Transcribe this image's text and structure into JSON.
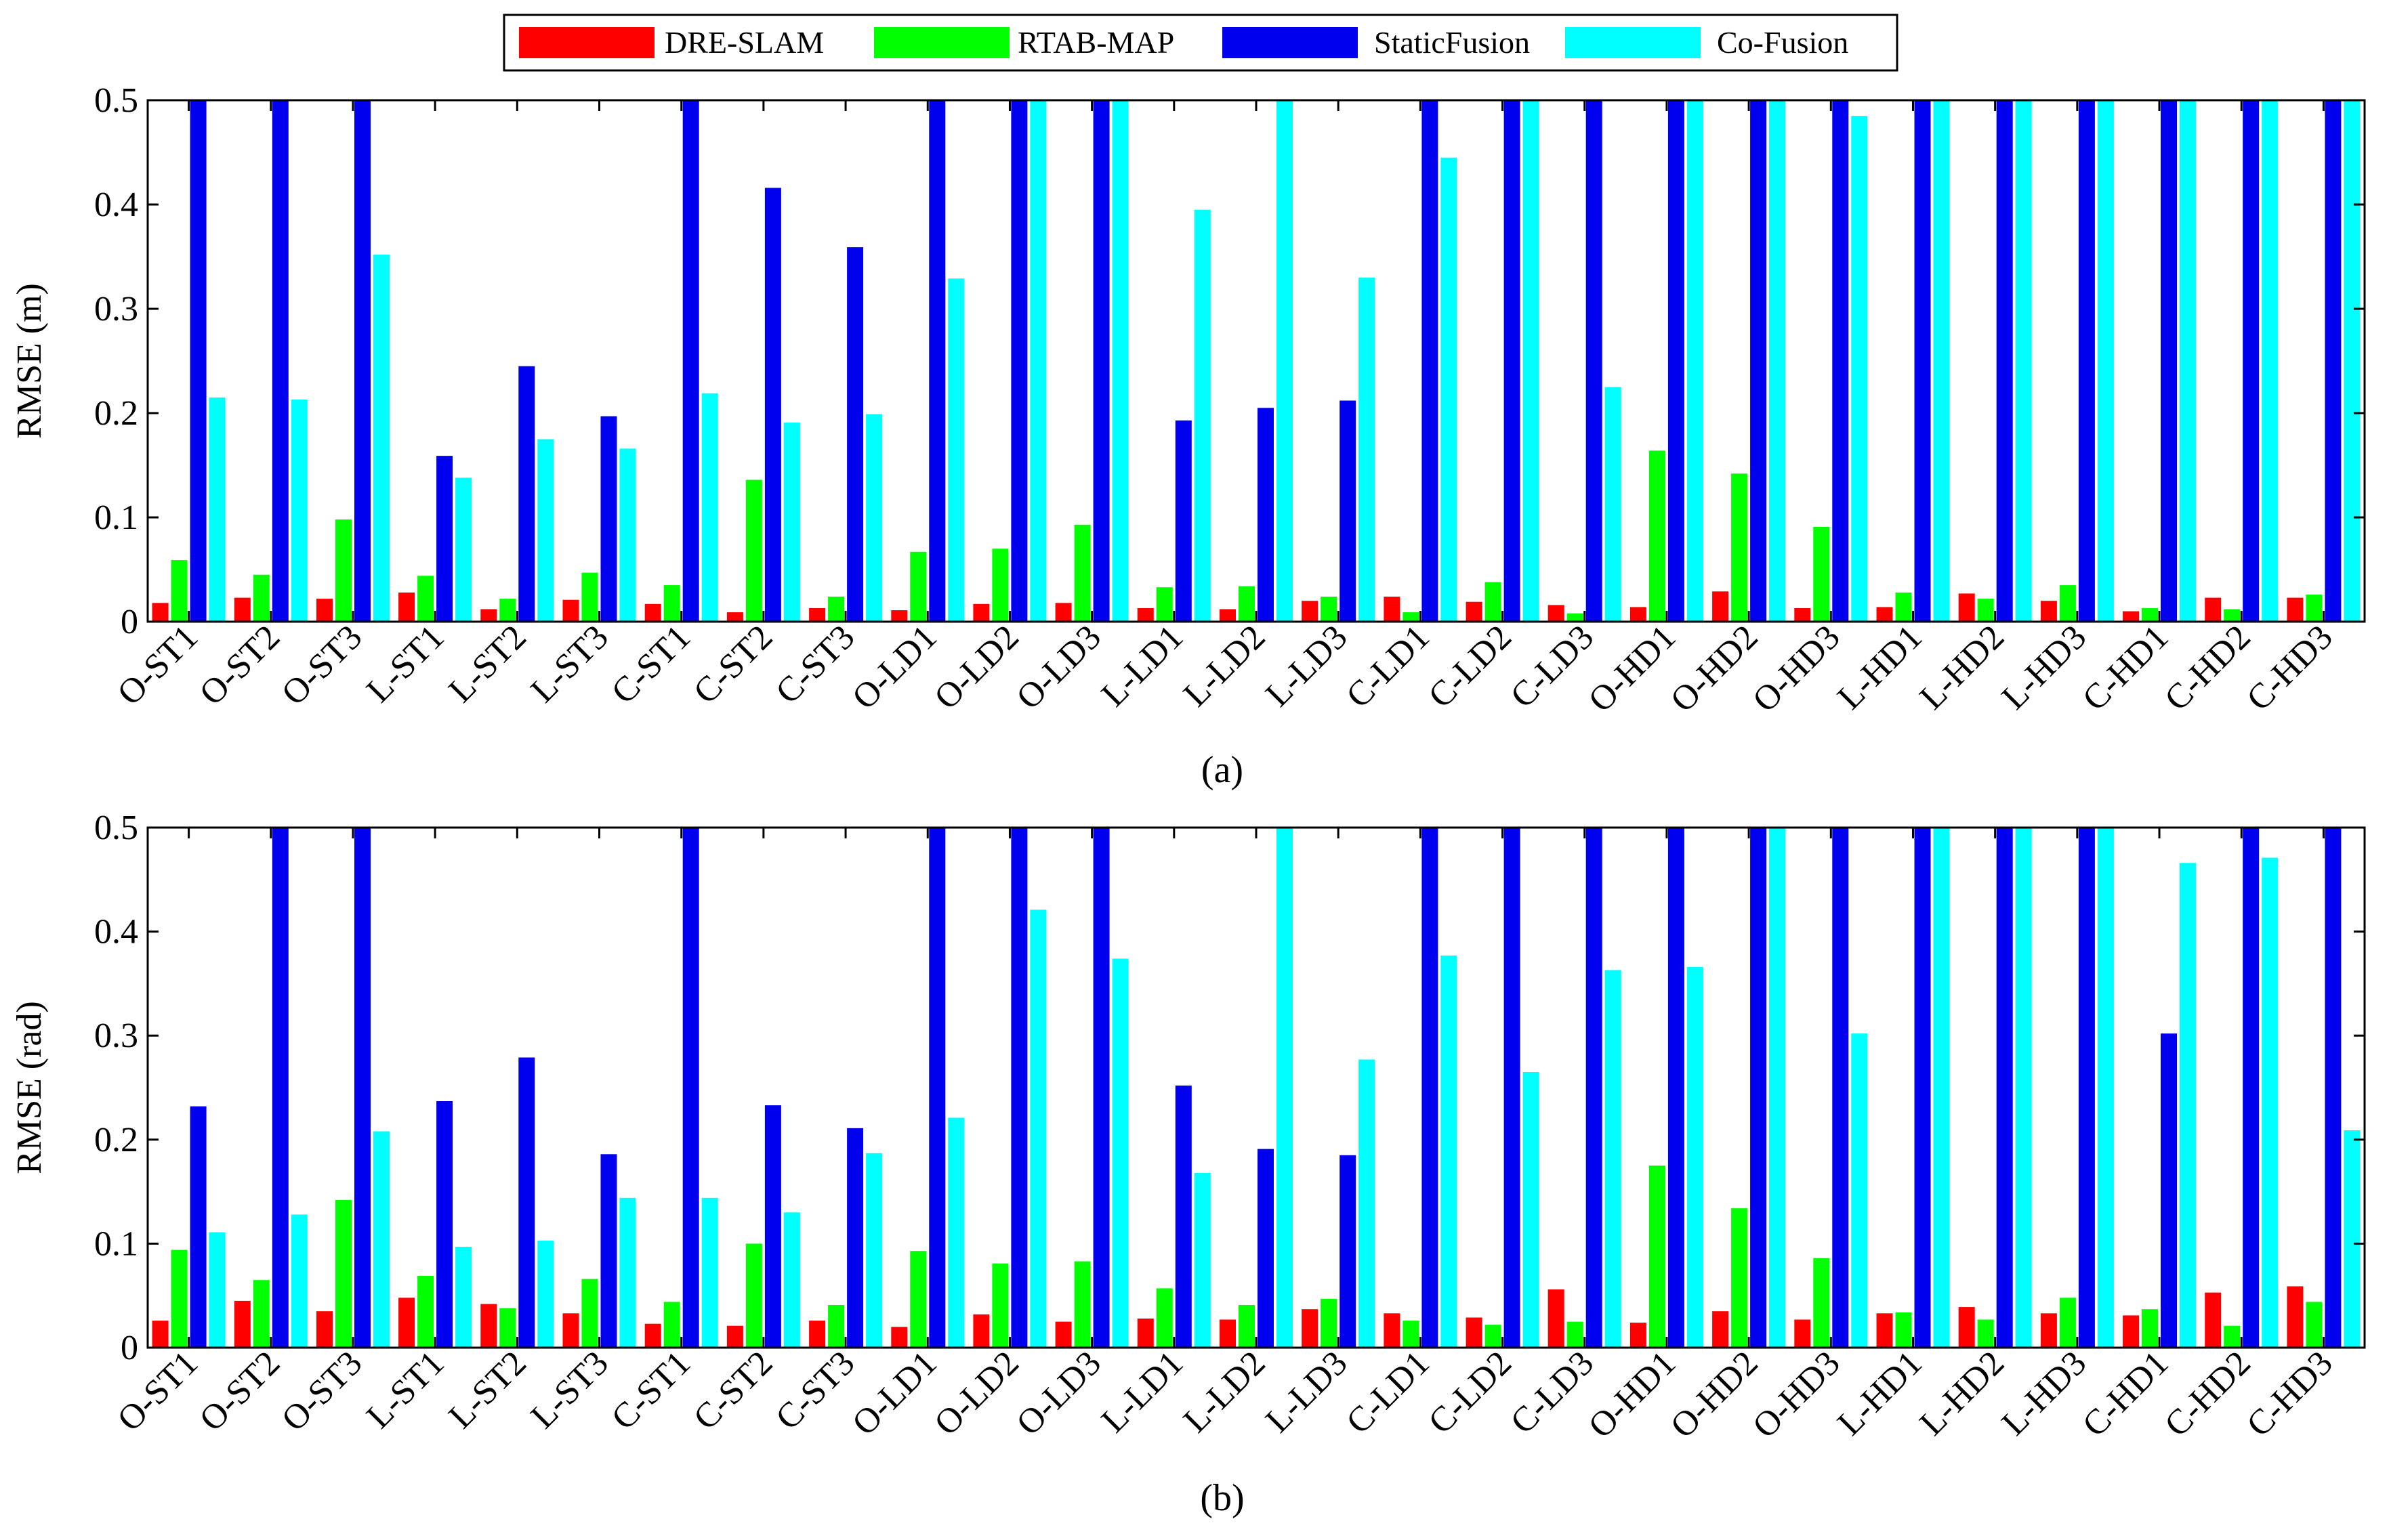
{
  "legend": {
    "entries": [
      "DRE-SLAM",
      "RTAB-MAP",
      "StaticFusion",
      "Co-Fusion"
    ],
    "colors": [
      "#ff0000",
      "#00ff00",
      "#0000ee",
      "#00ffff"
    ]
  },
  "chart_data": [
    {
      "type": "bar",
      "caption": "(a)",
      "ylabel": "RMSE (m)",
      "xlabel": "",
      "ylim": [
        0,
        0.5
      ],
      "yticks": [
        "0",
        "0.1",
        "0.2",
        "0.3",
        "0.4",
        "0.5"
      ],
      "categories": [
        "O-ST1",
        "O-ST2",
        "O-ST3",
        "L-ST1",
        "L-ST2",
        "L-ST3",
        "C-ST1",
        "C-ST2",
        "C-ST3",
        "O-LD1",
        "O-LD2",
        "O-LD3",
        "L-LD1",
        "L-LD2",
        "L-LD3",
        "C-LD1",
        "C-LD2",
        "C-LD3",
        "O-HD1",
        "O-HD2",
        "O-HD3",
        "L-HD1",
        "L-HD2",
        "L-HD3",
        "C-HD1",
        "C-HD2",
        "C-HD3"
      ],
      "series": [
        {
          "name": "DRE-SLAM",
          "values": [
            0.018,
            0.023,
            0.022,
            0.028,
            0.012,
            0.021,
            0.017,
            0.009,
            0.013,
            0.011,
            0.017,
            0.018,
            0.013,
            0.012,
            0.02,
            0.024,
            0.019,
            0.016,
            0.014,
            0.029,
            0.013,
            0.014,
            0.027,
            0.02,
            0.01,
            0.023,
            0.023
          ]
        },
        {
          "name": "RTAB-MAP",
          "values": [
            0.059,
            0.045,
            0.098,
            0.044,
            0.022,
            0.047,
            0.035,
            0.136,
            0.024,
            0.067,
            0.07,
            0.093,
            0.033,
            0.034,
            0.024,
            0.009,
            0.038,
            0.008,
            0.164,
            0.142,
            0.091,
            0.028,
            0.022,
            0.035,
            0.013,
            0.012,
            0.026
          ]
        },
        {
          "name": "StaticFusion",
          "values": [
            0.5,
            0.5,
            0.5,
            0.159,
            0.245,
            0.197,
            0.5,
            0.416,
            0.359,
            0.5,
            0.5,
            0.5,
            0.193,
            0.205,
            0.212,
            0.5,
            0.5,
            0.5,
            0.5,
            0.5,
            0.5,
            0.5,
            0.5,
            0.5,
            0.5,
            0.5,
            0.5
          ]
        },
        {
          "name": "Co-Fusion",
          "values": [
            0.215,
            0.213,
            0.352,
            0.138,
            0.175,
            0.166,
            0.219,
            0.191,
            0.199,
            0.329,
            0.5,
            0.5,
            0.395,
            0.5,
            0.33,
            0.445,
            0.5,
            0.225,
            0.5,
            0.5,
            0.485,
            0.5,
            0.5,
            0.5,
            0.5,
            0.5,
            0.5
          ]
        }
      ]
    },
    {
      "type": "bar",
      "caption": "(b)",
      "ylabel": "RMSE (rad)",
      "xlabel": "",
      "ylim": [
        0,
        0.5
      ],
      "yticks": [
        "0",
        "0.1",
        "0.2",
        "0.3",
        "0.4",
        "0.5"
      ],
      "categories": [
        "O-ST1",
        "O-ST2",
        "O-ST3",
        "L-ST1",
        "L-ST2",
        "L-ST3",
        "C-ST1",
        "C-ST2",
        "C-ST3",
        "O-LD1",
        "O-LD2",
        "O-LD3",
        "L-LD1",
        "L-LD2",
        "L-LD3",
        "C-LD1",
        "C-LD2",
        "C-LD3",
        "O-HD1",
        "O-HD2",
        "O-HD3",
        "L-HD1",
        "L-HD2",
        "L-HD3",
        "C-HD1",
        "C-HD2",
        "C-HD3"
      ],
      "series": [
        {
          "name": "DRE-SLAM",
          "values": [
            0.026,
            0.045,
            0.035,
            0.048,
            0.042,
            0.033,
            0.023,
            0.021,
            0.026,
            0.02,
            0.032,
            0.025,
            0.028,
            0.027,
            0.037,
            0.033,
            0.029,
            0.056,
            0.024,
            0.035,
            0.027,
            0.033,
            0.039,
            0.033,
            0.031,
            0.053,
            0.059
          ]
        },
        {
          "name": "RTAB-MAP",
          "values": [
            0.094,
            0.065,
            0.142,
            0.069,
            0.038,
            0.066,
            0.044,
            0.1,
            0.041,
            0.093,
            0.081,
            0.083,
            0.057,
            0.041,
            0.047,
            0.026,
            0.022,
            0.025,
            0.175,
            0.134,
            0.086,
            0.034,
            0.027,
            0.048,
            0.037,
            0.021,
            0.044
          ]
        },
        {
          "name": "StaticFusion",
          "values": [
            0.232,
            0.5,
            0.5,
            0.237,
            0.279,
            0.186,
            0.5,
            0.233,
            0.211,
            0.5,
            0.5,
            0.5,
            0.252,
            0.191,
            0.185,
            0.5,
            0.5,
            0.5,
            0.5,
            0.5,
            0.5,
            0.5,
            0.5,
            0.5,
            0.302,
            0.5,
            0.5
          ]
        },
        {
          "name": "Co-Fusion",
          "values": [
            0.111,
            0.128,
            0.208,
            0.097,
            0.103,
            0.144,
            0.144,
            0.13,
            0.187,
            0.221,
            0.421,
            0.374,
            0.168,
            0.5,
            0.277,
            0.377,
            0.265,
            0.363,
            0.366,
            0.5,
            0.302,
            0.5,
            0.5,
            0.5,
            0.466,
            0.471,
            0.209
          ]
        }
      ]
    }
  ]
}
